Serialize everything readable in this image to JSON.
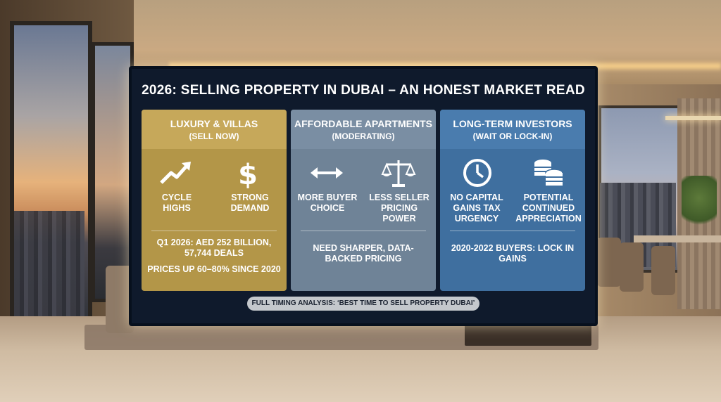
{
  "title": "2026: SELLING PROPERTY IN DUBAI – AN HONEST MARKET READ",
  "panels": [
    {
      "title": "LUXURY & VILLAS",
      "subtitle": "(SELL NOW)",
      "features": [
        {
          "icon": "trending-up-icon",
          "label": "CYCLE\nHIGHS"
        },
        {
          "icon": "dollar-sign-icon",
          "label": "STRONG\nDEMAND"
        }
      ],
      "notes": [
        "Q1 2026: AED 252 BILLION, 57,744 DEALS",
        "PRICES UP 60–80% SINCE 2020"
      ]
    },
    {
      "title": "AFFORDABLE APARTMENTS",
      "subtitle": "(MODERATING)",
      "features": [
        {
          "icon": "double-arrow-icon",
          "label": "MORE BUYER\nCHOICE"
        },
        {
          "icon": "scales-icon",
          "label": "LESS SELLER\nPRICING\nPOWER"
        }
      ],
      "notes": [
        "NEED SHARPER, DATA-BACKED PRICING"
      ]
    },
    {
      "title": "LONG-TERM INVESTORS",
      "subtitle": "(WAIT OR LOCK-IN)",
      "features": [
        {
          "icon": "clock-icon",
          "label": "NO CAPITAL\nGAINS TAX\nURGENCY"
        },
        {
          "icon": "coin-stack-icon",
          "label": "POTENTIAL\nCONTINUED\nAPPRECIATION"
        }
      ],
      "notes": [
        "2020-2022 BUYERS: LOCK IN GAINS"
      ]
    }
  ],
  "footer": "FULL TIMING ANALYSIS: ‘BEST TIME TO SELL PROPERTY DUBAI’"
}
